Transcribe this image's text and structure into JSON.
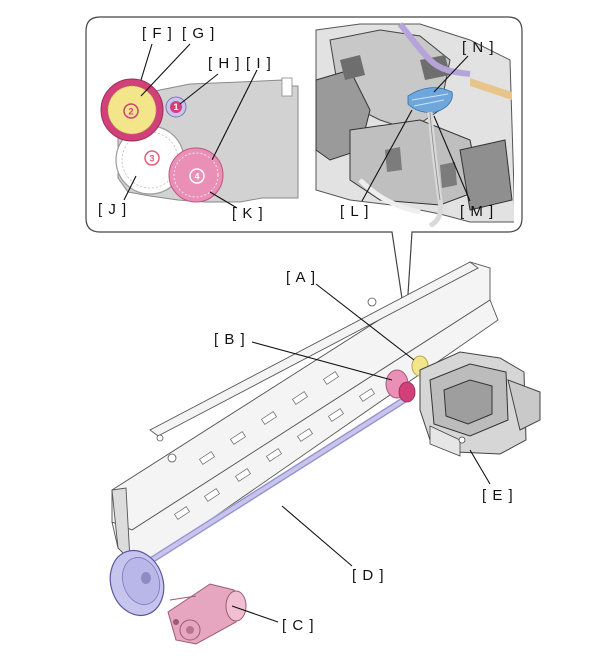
{
  "labels": {
    "A": "[ A ]",
    "B": "[ B ]",
    "C": "[ C ]",
    "D": "[ D ]",
    "E": "[ E ]",
    "F": "[ F ]",
    "G": "[ G ]",
    "H": "[ H ]",
    "I": "[ I ]",
    "J": "[ J ]",
    "K": "[ K ]",
    "L": "[ L ]",
    "M": "[ M ]",
    "N": "[ N ]"
  },
  "gear_numbers": {
    "g1": "1",
    "g2": "2",
    "g3": "3",
    "g4": "4"
  },
  "colors": {
    "gear_yellow": "#f3e58a",
    "gear_pink": "#ea8fb6",
    "gear_magenta": "#d2407a",
    "motor_pink": "#e7a6bf",
    "shaft_lavender": "#c7c5ee",
    "cable_blue": "#6fa7dc"
  }
}
